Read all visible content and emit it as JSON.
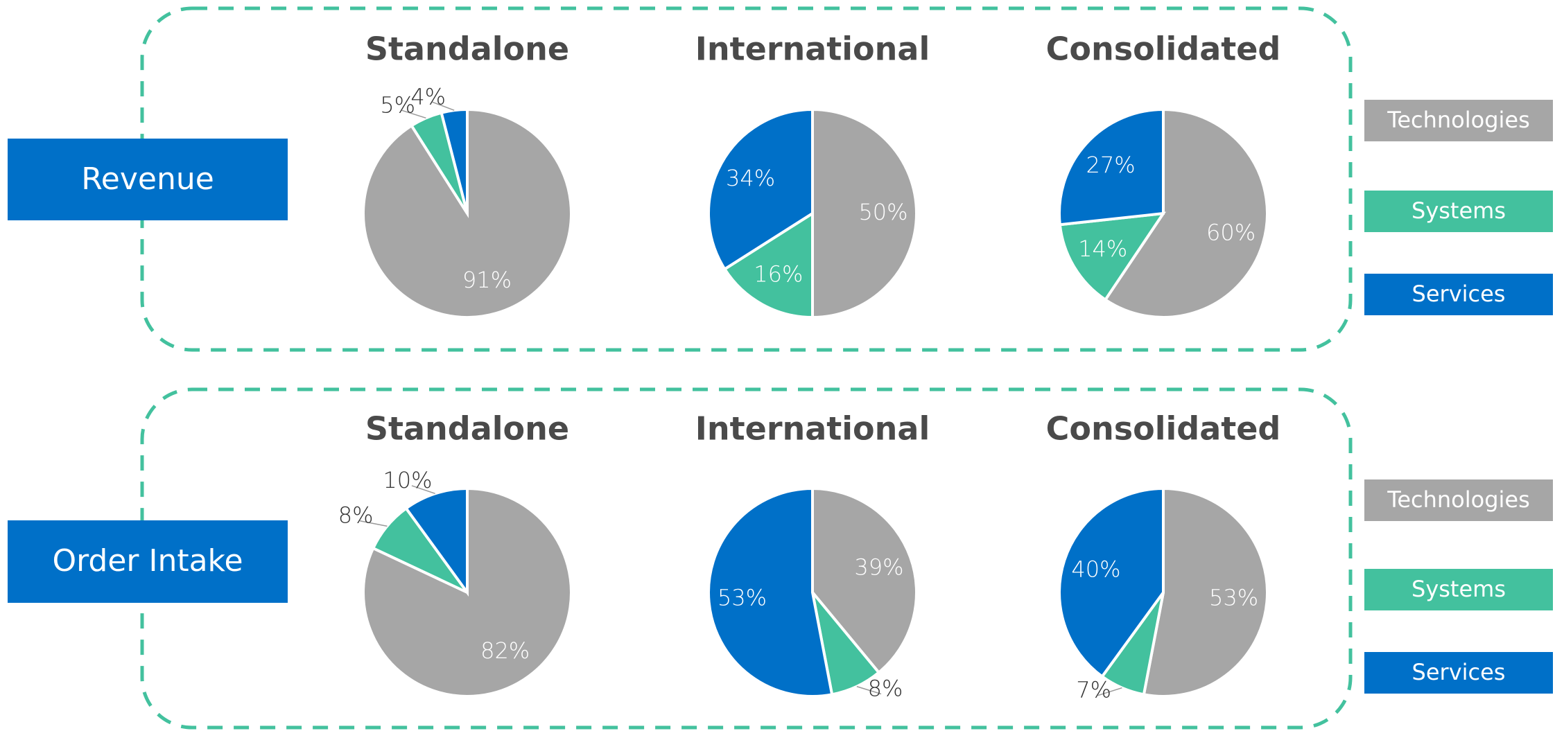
{
  "row_labels": [
    "Revenue",
    "Order Intake"
  ],
  "chart_data": [
    {
      "type": "pie",
      "title": "Standalone",
      "categories": [
        "Technologies",
        "Systems",
        "Services"
      ],
      "colors": [
        "#a6a6a6",
        "#43c19e",
        "#0070c8"
      ],
      "values": [
        91,
        5,
        4
      ],
      "value_labels": [
        "91%",
        "5%",
        "4%"
      ]
    },
    {
      "type": "pie",
      "title": "International",
      "categories": [
        "Technologies",
        "Systems",
        "Services"
      ],
      "colors": [
        "#a6a6a6",
        "#43c19e",
        "#0070c8"
      ],
      "values": [
        50,
        16,
        34
      ],
      "value_labels": [
        "50%",
        "16%",
        "34%"
      ]
    },
    {
      "type": "pie",
      "title": "Consolidated",
      "categories": [
        "Technologies",
        "Systems",
        "Services"
      ],
      "colors": [
        "#a6a6a6",
        "#43c19e",
        "#0070c8"
      ],
      "values": [
        60,
        14,
        27
      ],
      "value_labels": [
        "60%",
        "14%",
        "27%"
      ]
    },
    {
      "type": "pie",
      "title": "Standalone",
      "categories": [
        "Technologies",
        "Systems",
        "Services"
      ],
      "colors": [
        "#a6a6a6",
        "#43c19e",
        "#0070c8"
      ],
      "values": [
        82,
        8,
        10
      ],
      "value_labels": [
        "82%",
        "8%",
        "10%"
      ]
    },
    {
      "type": "pie",
      "title": "International",
      "categories": [
        "Technologies",
        "Systems",
        "Services"
      ],
      "colors": [
        "#a6a6a6",
        "#43c19e",
        "#0070c8"
      ],
      "values": [
        39,
        8,
        53
      ],
      "value_labels": [
        "39%",
        "8%",
        "53%"
      ]
    },
    {
      "type": "pie",
      "title": "Consolidated",
      "categories": [
        "Technologies",
        "Systems",
        "Services"
      ],
      "colors": [
        "#a6a6a6",
        "#43c19e",
        "#0070c8"
      ],
      "values": [
        53,
        7,
        40
      ],
      "value_labels": [
        "53%",
        "7%",
        "40%"
      ]
    }
  ]
}
